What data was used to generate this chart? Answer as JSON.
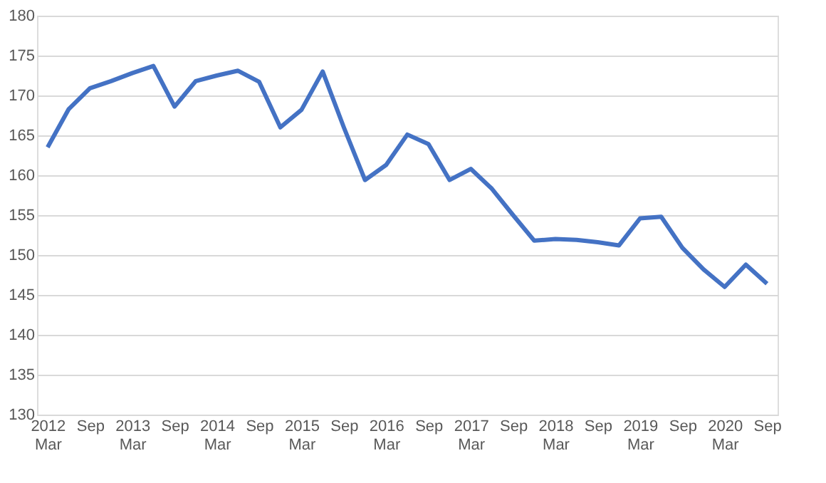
{
  "chart_data": {
    "type": "line",
    "categories": [
      "2012 Mar",
      null,
      "Sep",
      null,
      "2013 Mar",
      null,
      "Sep",
      null,
      "2014 Mar",
      null,
      "Sep",
      null,
      "2015 Mar",
      null,
      "Sep",
      null,
      "2016 Mar",
      null,
      "Sep",
      null,
      "2017 Mar",
      null,
      "Sep",
      null,
      "2018 Mar",
      null,
      "Sep",
      null,
      "2019 Mar",
      null,
      "Sep",
      null,
      "2020 Mar",
      null,
      "Sep"
    ],
    "series": [
      {
        "color": "#4472c4",
        "values": [
          163.5,
          168.3,
          170.9,
          171.8,
          172.8,
          173.7,
          168.6,
          171.8,
          172.5,
          173.1,
          171.7,
          166.0,
          168.2,
          173.0,
          166.0,
          159.4,
          161.3,
          165.1,
          163.9,
          159.4,
          160.8,
          158.3,
          155.0,
          151.8,
          152.0,
          151.9,
          151.6,
          151.2,
          154.6,
          154.8,
          150.9,
          148.2,
          146.0,
          148.8,
          146.4
        ]
      }
    ],
    "ylim": [
      130,
      180
    ],
    "yticks": [
      130,
      135,
      140,
      145,
      150,
      155,
      160,
      165,
      170,
      175,
      180
    ],
    "grid": "y",
    "legend": false,
    "marker": "none",
    "line_style": "solid"
  }
}
